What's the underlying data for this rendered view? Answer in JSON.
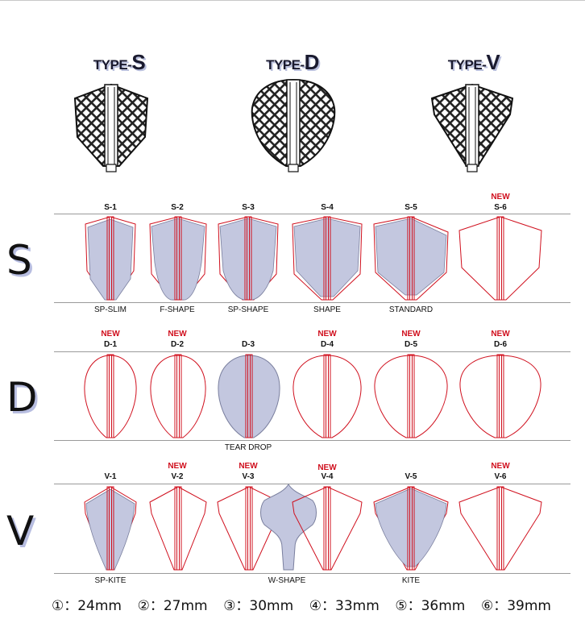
{
  "types": {
    "s": {
      "prefix": "TYPE-",
      "letter": "S"
    },
    "d": {
      "prefix": "TYPE-",
      "letter": "D"
    },
    "v": {
      "prefix": "TYPE-",
      "letter": "V"
    }
  },
  "rows": {
    "s": {
      "letter": "S",
      "items": [
        {
          "code": "S-1",
          "new": "",
          "name": "SP-SLIM"
        },
        {
          "code": "S-2",
          "new": "",
          "name": "F-SHAPE"
        },
        {
          "code": "S-3",
          "new": "",
          "name": "SP-SHAPE"
        },
        {
          "code": "S-4",
          "new": "",
          "name": "SHAPE"
        },
        {
          "code": "S-5",
          "new": "",
          "name": "STANDARD"
        },
        {
          "code": "S-6",
          "new": "NEW",
          "name": ""
        }
      ]
    },
    "d": {
      "letter": "D",
      "items": [
        {
          "code": "D-1",
          "new": "NEW",
          "name": ""
        },
        {
          "code": "D-2",
          "new": "NEW",
          "name": ""
        },
        {
          "code": "D-3",
          "new": "",
          "name": "TEAR DROP"
        },
        {
          "code": "D-4",
          "new": "NEW",
          "name": ""
        },
        {
          "code": "D-5",
          "new": "NEW",
          "name": ""
        },
        {
          "code": "D-6",
          "new": "NEW",
          "name": ""
        }
      ]
    },
    "v": {
      "letter": "V",
      "items": [
        {
          "code": "V-1",
          "new": "",
          "name": "SP-KITE"
        },
        {
          "code": "V-2",
          "new": "NEW",
          "name": ""
        },
        {
          "code": "V-3",
          "new": "NEW",
          "name": "W-SHAPE"
        },
        {
          "code": "V-4",
          "new": "NEW",
          "name": ""
        },
        {
          "code": "V-5",
          "new": "",
          "name": "KITE"
        },
        {
          "code": "V-6",
          "new": "NEW",
          "name": ""
        }
      ]
    }
  },
  "sizes": [
    "①：24mm",
    "②：27mm",
    "③：30mm",
    "④：33mm",
    "⑤：36mm",
    "⑥：39mm"
  ],
  "colors": {
    "outline": "#d0101e",
    "fill": "#c3c7df",
    "fill_stroke": "#7a7f9e",
    "line": "#9a9a9a"
  }
}
